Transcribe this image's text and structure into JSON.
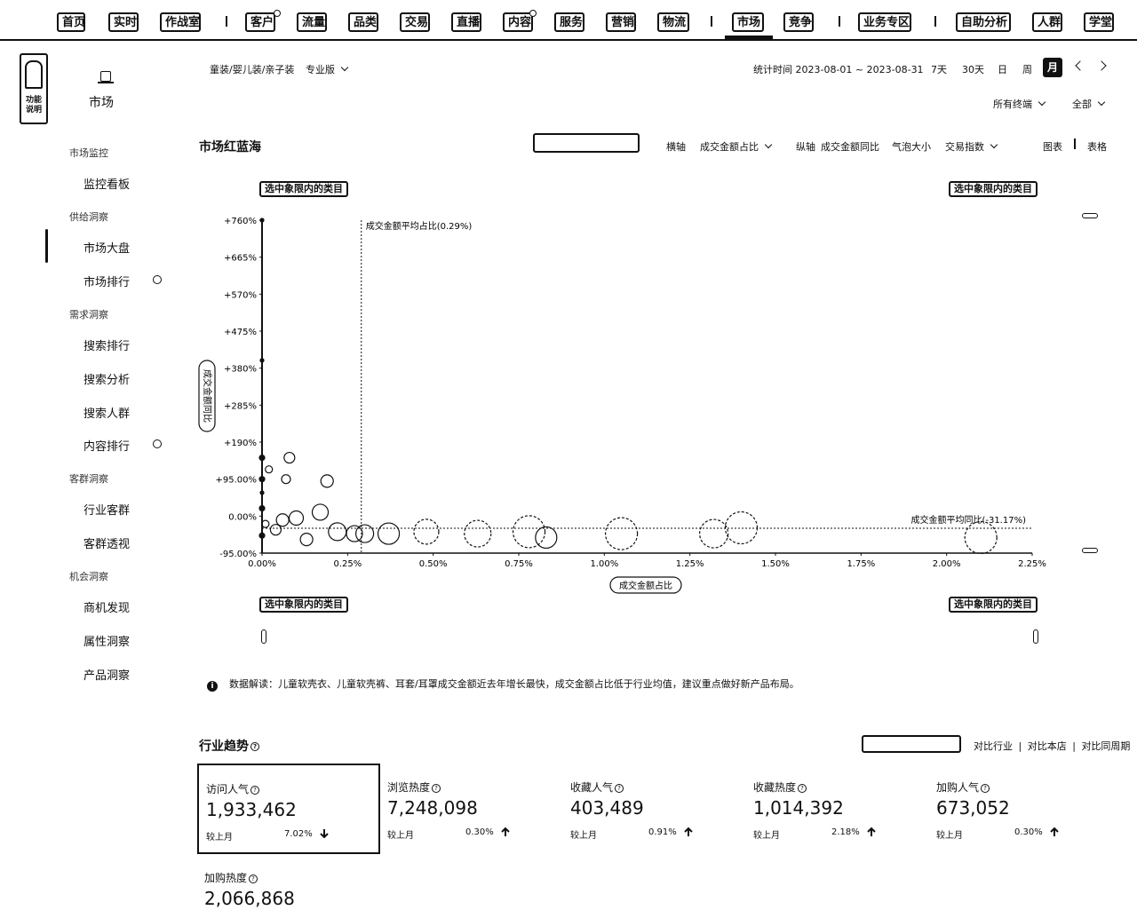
{
  "nav": {
    "items": [
      "首页",
      "实时",
      "作战室",
      "客户",
      "流量",
      "品类",
      "交易",
      "直播",
      "内容",
      "服务",
      "营销",
      "物流",
      "市场",
      "竞争",
      "业务专区",
      "自助分析",
      "人群",
      "学堂"
    ],
    "active": "市场"
  },
  "logo": {
    "text": "功能说明"
  },
  "sidebar": {
    "title": "市场",
    "groups": [
      {
        "label": "市场监控",
        "items": [
          "监控看板"
        ]
      },
      {
        "label": "供给洞察",
        "items": [
          "市场大盘",
          "市场排行"
        ]
      },
      {
        "label": "需求洞察",
        "items": [
          "搜索排行",
          "搜索分析",
          "搜索人群",
          "内容排行"
        ]
      },
      {
        "label": "客群洞察",
        "items": [
          "行业客群",
          "客群透视"
        ]
      },
      {
        "label": "机会洞察",
        "items": [
          "商机发现",
          "属性洞察",
          "产品洞察"
        ]
      }
    ],
    "active_item": "市场大盘"
  },
  "header": {
    "category": "童装/婴儿装/亲子装",
    "edition": "专业版",
    "stat_time": "统计时间 2023-08-01 ~ 2023-08-31",
    "periods": [
      "7天",
      "30天",
      "日",
      "周",
      "月"
    ],
    "active_period": "月",
    "filter_left": "所有终端",
    "filter_right": "全部"
  },
  "redblue": {
    "title": "市场红蓝海",
    "x_label_prefix": "横轴",
    "x_select": "成交金额占比",
    "y_label_prefix": "纵轴",
    "y_select": "成交金额同比",
    "bubble_label": "气泡大小",
    "bubble_select": "交易指数",
    "view_chart": "图表",
    "view_table": "表格",
    "quadrant_label": "选中象限内的类目",
    "interpretation": "数据解读：儿童软壳衣、儿童软壳裤、耳套/耳罩成交金额近去年增长最快，成交金额占比低于行业均值，建议重点做好新产品布局。"
  },
  "chart_data": {
    "type": "scatter",
    "xlabel": "成交金额占比",
    "ylabel": "成交金额同比",
    "x_ticks": [
      "0.00%",
      "0.25%",
      "0.50%",
      "0.75%",
      "1.00%",
      "1.25%",
      "1.50%",
      "1.75%",
      "2.00%",
      "2.25%"
    ],
    "y_ticks": [
      "+760%",
      "+665%",
      "+570%",
      "+475%",
      "+380%",
      "+285%",
      "+190%",
      "+95.00%",
      "0.00%",
      "-95.00%"
    ],
    "xlim": [
      0,
      2.25
    ],
    "ylim": [
      -95,
      760
    ],
    "avg_x": {
      "value": 0.29,
      "label": "成交金额平均占比(0.29%)"
    },
    "avg_y": {
      "value": -31.17,
      "label": "成交金额平均同比(-31.17%)"
    },
    "points": [
      {
        "x": 0.0,
        "y": 760,
        "r": 2
      },
      {
        "x": 0.0,
        "y": 400,
        "r": 2
      },
      {
        "x": 0.0,
        "y": 150,
        "r": 3
      },
      {
        "x": 0.02,
        "y": 120,
        "r": 4
      },
      {
        "x": 0.08,
        "y": 150,
        "r": 6
      },
      {
        "x": 0.07,
        "y": 95,
        "r": 5
      },
      {
        "x": 0.19,
        "y": 90,
        "r": 7
      },
      {
        "x": 0.0,
        "y": 95,
        "r": 3
      },
      {
        "x": 0.0,
        "y": 60,
        "r": 2
      },
      {
        "x": 0.0,
        "y": 20,
        "r": 3
      },
      {
        "x": 0.01,
        "y": -20,
        "r": 4
      },
      {
        "x": 0.0,
        "y": -50,
        "r": 3
      },
      {
        "x": 0.04,
        "y": -35,
        "r": 6
      },
      {
        "x": 0.06,
        "y": -10,
        "r": 7
      },
      {
        "x": 0.1,
        "y": -5,
        "r": 8
      },
      {
        "x": 0.13,
        "y": -60,
        "r": 7
      },
      {
        "x": 0.17,
        "y": 10,
        "r": 9
      },
      {
        "x": 0.22,
        "y": -40,
        "r": 10
      },
      {
        "x": 0.27,
        "y": -45,
        "r": 9
      },
      {
        "x": 0.3,
        "y": -45,
        "r": 10
      },
      {
        "x": 0.37,
        "y": -45,
        "r": 12
      },
      {
        "x": 0.48,
        "y": -40,
        "r": 14
      },
      {
        "x": 0.63,
        "y": -45,
        "r": 15
      },
      {
        "x": 0.78,
        "y": -40,
        "r": 18
      },
      {
        "x": 0.83,
        "y": -55,
        "r": 12
      },
      {
        "x": 1.05,
        "y": -45,
        "r": 18
      },
      {
        "x": 1.32,
        "y": -45,
        "r": 16
      },
      {
        "x": 1.4,
        "y": -30,
        "r": 18
      },
      {
        "x": 2.1,
        "y": -55,
        "r": 18
      }
    ]
  },
  "trends": {
    "title": "行业趋势",
    "compare_options": [
      "对比行业",
      "对比本店",
      "对比同周期"
    ],
    "compare_prefix": "较上月",
    "metrics": [
      {
        "label": "访问人气",
        "value": "1,933,462",
        "pct": "7.02%",
        "dir": "down"
      },
      {
        "label": "浏览热度",
        "value": "7,248,098",
        "pct": "0.30%",
        "dir": "up"
      },
      {
        "label": "收藏人气",
        "value": "403,489",
        "pct": "0.91%",
        "dir": "up"
      },
      {
        "label": "收藏热度",
        "value": "1,014,392",
        "pct": "2.18%",
        "dir": "up"
      },
      {
        "label": "加购人气",
        "value": "673,052",
        "pct": "0.30%",
        "dir": "up"
      },
      {
        "label": "加购热度",
        "value": "2,066,868",
        "pct": "",
        "dir": ""
      }
    ]
  }
}
